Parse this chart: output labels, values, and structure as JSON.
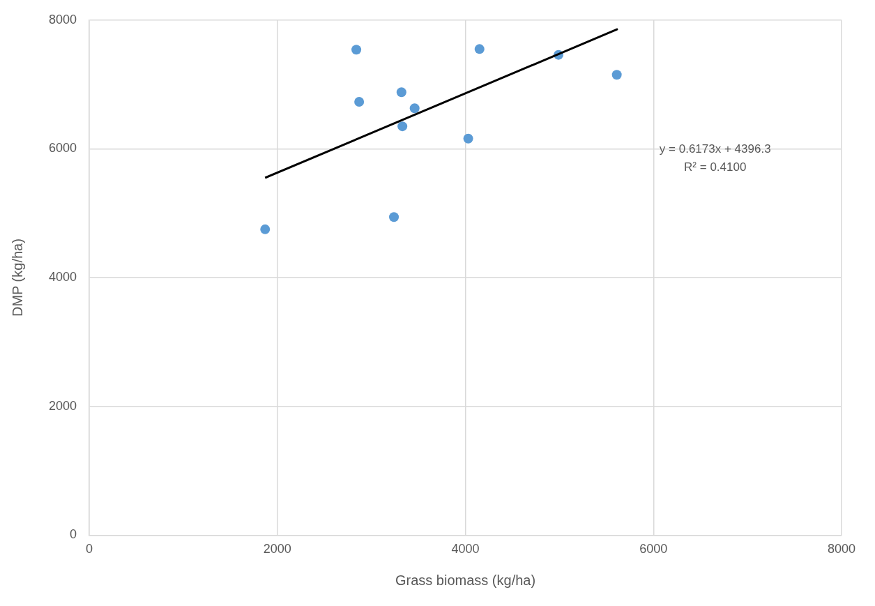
{
  "chart_data": {
    "type": "scatter",
    "xlabel": "Grass biomass (kg/ha)",
    "ylabel": "DMP (kg/ha)",
    "annotations": [
      "y = 0.6173x + 4396.3",
      "R² = 0.4100"
    ],
    "xlim": [
      0,
      8000
    ],
    "xticks": [
      0,
      2000,
      4000,
      6000,
      8000
    ],
    "ylim": [
      0,
      8000
    ],
    "yticks": [
      0,
      2000,
      4000,
      6000,
      8000
    ],
    "grid": true,
    "legend": false,
    "marker": "circle",
    "series": [
      {
        "color": "#5b9bd5",
        "x": [
          2840,
          4150,
          4990,
          5610,
          3320,
          2870,
          3460,
          3330,
          4030,
          3240,
          1870
        ],
        "values": [
          7540,
          7550,
          7460,
          7150,
          6880,
          6730,
          6630,
          6350,
          6160,
          4940,
          4750
        ]
      },
      {
        "type": "line",
        "color": "#000000",
        "x": [
          1870,
          5620
        ],
        "values": [
          5550,
          7860
        ],
        "marker": "none"
      }
    ]
  }
}
